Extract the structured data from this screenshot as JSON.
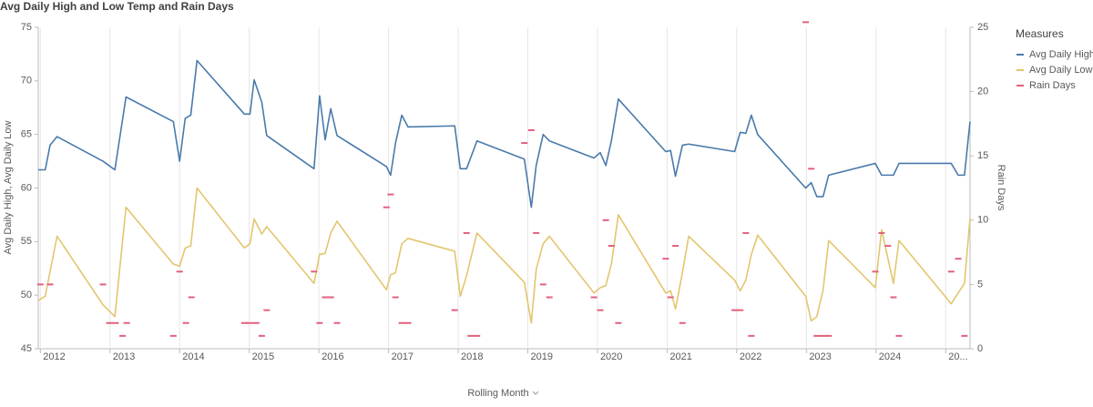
{
  "chart_data": {
    "type": "line",
    "title": "Avg Daily High and Low Temp and Rain Days",
    "x_label": "Rolling Month",
    "y_label": "Avg Daily High, Avg Daily Low",
    "y2_label": "Rain Days",
    "legend_title": "Measures",
    "legend_position": "right",
    "grid": "x",
    "xlim": [
      2011.97,
      2025.35
    ],
    "xticks": [
      2012,
      2013,
      2014,
      2015,
      2016,
      2017,
      2018,
      2019,
      2020,
      2021,
      2022,
      2023,
      2024,
      {
        "value": 2025,
        "label": "20..."
      }
    ],
    "ylim": [
      45,
      75
    ],
    "yticks": [
      45,
      50,
      55,
      60,
      65,
      70,
      75
    ],
    "y2lim": [
      0,
      25
    ],
    "y2ticks": [
      0,
      5,
      10,
      15,
      20,
      25
    ],
    "x": [
      2011.97,
      2012.07,
      2012.14,
      2012.24,
      2012.9,
      2013.07,
      2013.23,
      2013.91,
      2014.0,
      2014.08,
      2014.16,
      2014.25,
      2014.93,
      2015.01,
      2015.07,
      2015.18,
      2015.25,
      2015.93,
      2016.01,
      2016.09,
      2016.17,
      2016.26,
      2016.97,
      2017.03,
      2017.1,
      2017.19,
      2017.28,
      2017.95,
      2018.03,
      2018.12,
      2018.27,
      2018.95,
      2019.05,
      2019.12,
      2019.22,
      2019.31,
      2019.95,
      2020.04,
      2020.12,
      2020.2,
      2020.3,
      2020.98,
      2021.05,
      2021.12,
      2021.22,
      2021.31,
      2021.97,
      2022.05,
      2022.13,
      2022.21,
      2022.3,
      2022.99,
      2023.07,
      2023.15,
      2023.24,
      2023.32,
      2023.99,
      2024.08,
      2024.25,
      2024.33,
      2025.08,
      2025.18,
      2025.27,
      2025.35
    ],
    "series": [
      {
        "name": "Avg Daily High",
        "color": "#4a7aab",
        "style": "line",
        "values": [
          61.7,
          61.7,
          64.0,
          64.8,
          62.5,
          61.7,
          68.5,
          66.2,
          62.5,
          66.5,
          66.8,
          71.9,
          66.9,
          66.9,
          70.1,
          68.0,
          64.9,
          61.8,
          68.6,
          64.5,
          67.4,
          64.9,
          62.0,
          61.2,
          64.2,
          66.8,
          65.7,
          65.8,
          61.8,
          61.8,
          64.4,
          62.7,
          58.2,
          62.1,
          65.0,
          64.4,
          62.8,
          63.3,
          62.1,
          64.4,
          68.3,
          63.4,
          63.5,
          61.1,
          64.0,
          64.1,
          63.4,
          65.2,
          65.1,
          66.8,
          65.0,
          60.0,
          60.5,
          59.2,
          59.2,
          61.2,
          62.3,
          61.2,
          61.2,
          62.3,
          62.3,
          61.2,
          61.2,
          66.2
        ]
      },
      {
        "name": "Avg Daily Low",
        "color": "#e3c66e",
        "style": "line",
        "values": [
          49.5,
          49.9,
          52.2,
          55.5,
          49.1,
          48.0,
          58.2,
          52.9,
          52.7,
          54.4,
          54.6,
          60.0,
          54.4,
          54.8,
          57.1,
          55.7,
          56.4,
          51.1,
          53.8,
          53.9,
          55.8,
          56.9,
          50.5,
          51.9,
          52.1,
          54.8,
          55.3,
          54.1,
          49.9,
          51.8,
          55.8,
          51.2,
          47.4,
          52.4,
          54.8,
          55.5,
          50.2,
          50.7,
          50.9,
          52.9,
          57.5,
          50.2,
          50.4,
          48.7,
          52.1,
          55.5,
          51.4,
          50.4,
          51.4,
          53.8,
          55.6,
          49.9,
          47.6,
          48.0,
          50.5,
          55.1,
          50.7,
          56.1,
          51.1,
          55.1,
          49.2,
          50.2,
          51.1,
          57.2
        ]
      },
      {
        "name": "Rain Days",
        "color": "#e2607d",
        "style": "dash",
        "axis": "y2",
        "x": [
          2012.0,
          2012.14,
          2012.9,
          2012.99,
          2013.08,
          2013.18,
          2013.24,
          2013.91,
          2014.0,
          2014.09,
          2014.17,
          2014.93,
          2015.01,
          2015.1,
          2015.18,
          2015.25,
          2015.93,
          2016.01,
          2016.09,
          2016.17,
          2016.26,
          2016.97,
          2017.03,
          2017.1,
          2017.19,
          2017.28,
          2017.95,
          2018.12,
          2018.18,
          2018.27,
          2018.95,
          2019.05,
          2019.12,
          2019.22,
          2019.31,
          2019.95,
          2020.04,
          2020.12,
          2020.2,
          2020.3,
          2020.98,
          2021.05,
          2021.12,
          2021.22,
          2021.97,
          2022.05,
          2022.13,
          2022.21,
          2022.99,
          2023.07,
          2023.15,
          2023.24,
          2023.32,
          2023.99,
          2024.08,
          2024.17,
          2024.25,
          2024.33,
          2025.08,
          2025.18,
          2025.27
        ],
        "values": [
          5,
          5,
          5,
          2,
          2,
          1,
          2,
          1,
          6,
          2,
          4,
          2,
          2,
          2,
          1,
          3,
          6,
          2,
          4,
          4,
          2,
          11,
          12,
          4,
          2,
          2,
          3,
          9,
          1,
          1,
          16,
          17,
          9,
          5,
          4,
          4,
          3,
          10,
          8,
          2,
          7,
          4,
          8,
          2,
          3,
          3,
          9,
          1,
          25.4,
          14,
          1,
          1,
          1,
          6,
          9,
          8,
          4,
          1,
          6,
          7,
          1
        ]
      }
    ]
  }
}
